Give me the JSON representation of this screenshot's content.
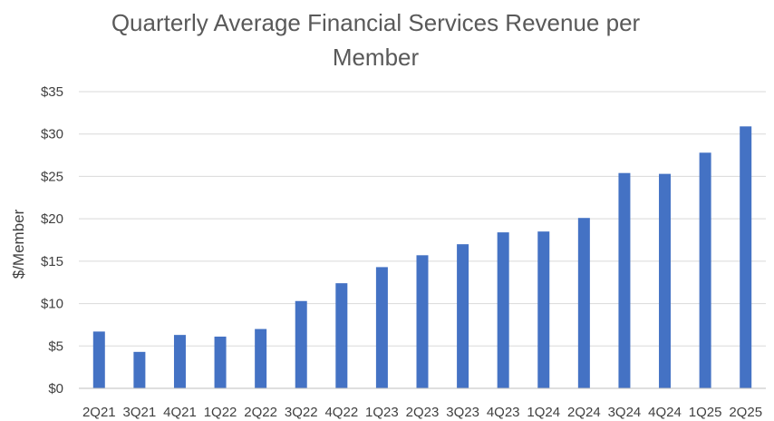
{
  "chart_data": {
    "type": "bar",
    "title": "Quarterly Average Financial Services Revenue per Member",
    "xlabel": "",
    "ylabel": "$/Member",
    "categories": [
      "2Q21",
      "3Q21",
      "4Q21",
      "1Q22",
      "2Q22",
      "3Q22",
      "4Q22",
      "1Q23",
      "2Q23",
      "3Q23",
      "4Q23",
      "1Q24",
      "2Q24",
      "3Q24",
      "4Q24",
      "1Q25",
      "2Q25"
    ],
    "values": [
      6.7,
      4.3,
      6.3,
      6.1,
      7.0,
      10.3,
      12.4,
      14.3,
      15.7,
      17.0,
      18.4,
      18.5,
      20.1,
      25.4,
      25.3,
      27.8,
      30.9
    ],
    "ylim": [
      0,
      35
    ],
    "yticks": [
      0,
      5,
      10,
      15,
      20,
      25,
      30,
      35
    ],
    "ytick_labels": [
      "$0",
      "$5",
      "$10",
      "$15",
      "$20",
      "$25",
      "$30",
      "$35"
    ],
    "grid": true,
    "legend": "none",
    "bar_color": "#4472C4",
    "grid_color": "#D9D9D9",
    "axis_color": "#BFBFBF"
  }
}
